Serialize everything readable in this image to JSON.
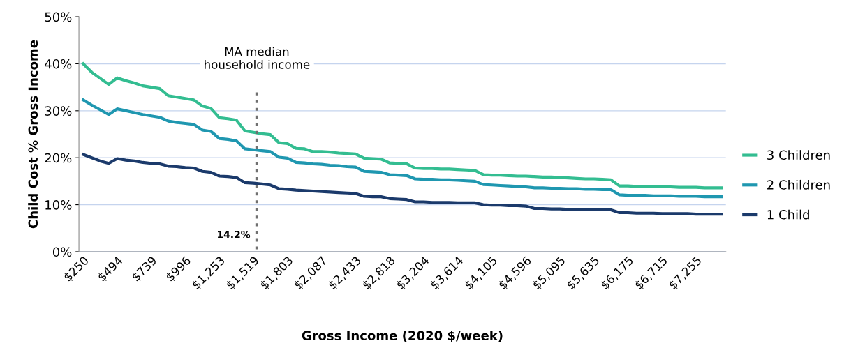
{
  "chart_data": {
    "type": "line",
    "xlabel": "Gross Income (2020 $/week)",
    "ylabel": "Child Cost % Gross Income",
    "categories": [
      "$250",
      null,
      null,
      null,
      "$494",
      null,
      null,
      null,
      "$739",
      null,
      null,
      null,
      "$996",
      null,
      null,
      null,
      "$1,253",
      null,
      null,
      null,
      "$1,519",
      null,
      null,
      null,
      "$1,803",
      null,
      null,
      null,
      "$2,087",
      null,
      null,
      null,
      "$2,433",
      null,
      null,
      null,
      "$2,818",
      null,
      null,
      null,
      "$3,204",
      null,
      null,
      null,
      "$3,614",
      null,
      null,
      null,
      "$4,105",
      null,
      null,
      null,
      "$4,596",
      null,
      null,
      null,
      "$5,095",
      null,
      null,
      null,
      "$5,635",
      null,
      null,
      null,
      "$6,175",
      null,
      null,
      null,
      "$6,715",
      null,
      null,
      null,
      "$7,255",
      null,
      null,
      null
    ],
    "series": [
      {
        "name": "3 Children",
        "color": "#33bd91",
        "values": [
          40.0,
          38.2,
          36.9,
          35.6,
          37.0,
          36.4,
          35.9,
          35.3,
          35.0,
          34.7,
          33.2,
          32.9,
          32.6,
          32.3,
          31.0,
          30.5,
          28.5,
          28.3,
          28.0,
          25.7,
          25.4,
          25.1,
          24.9,
          23.2,
          23.0,
          22.0,
          21.9,
          21.3,
          21.3,
          21.2,
          21.0,
          20.9,
          20.8,
          19.9,
          19.8,
          19.7,
          18.9,
          18.8,
          18.7,
          17.8,
          17.7,
          17.7,
          17.6,
          17.6,
          17.5,
          17.4,
          17.3,
          16.4,
          16.3,
          16.3,
          16.2,
          16.1,
          16.1,
          16.0,
          15.9,
          15.9,
          15.8,
          15.7,
          15.6,
          15.5,
          15.5,
          15.4,
          15.3,
          14.0,
          14.0,
          13.9,
          13.9,
          13.8,
          13.8,
          13.8,
          13.7,
          13.7,
          13.7,
          13.6,
          13.6,
          13.6
        ]
      },
      {
        "name": "2 Children",
        "color": "#1f97b0",
        "values": [
          32.3,
          31.2,
          30.2,
          29.2,
          30.4,
          30.0,
          29.6,
          29.2,
          28.9,
          28.6,
          27.8,
          27.5,
          27.3,
          27.1,
          25.9,
          25.6,
          24.1,
          23.9,
          23.6,
          21.9,
          21.7,
          21.5,
          21.3,
          20.1,
          19.9,
          19.0,
          18.9,
          18.7,
          18.6,
          18.4,
          18.3,
          18.1,
          18.0,
          17.1,
          17.0,
          16.9,
          16.4,
          16.3,
          16.2,
          15.5,
          15.4,
          15.4,
          15.3,
          15.3,
          15.2,
          15.1,
          15.0,
          14.3,
          14.2,
          14.1,
          14.0,
          13.9,
          13.8,
          13.6,
          13.6,
          13.5,
          13.5,
          13.4,
          13.4,
          13.3,
          13.3,
          13.2,
          13.2,
          12.1,
          12.0,
          12.0,
          12.0,
          11.9,
          11.9,
          11.9,
          11.8,
          11.8,
          11.8,
          11.7,
          11.7,
          11.7
        ]
      },
      {
        "name": "1 Child",
        "color": "#1b3a6b",
        "values": [
          20.7,
          20.0,
          19.3,
          18.8,
          19.8,
          19.5,
          19.3,
          19.0,
          18.8,
          18.7,
          18.2,
          18.1,
          17.9,
          17.8,
          17.1,
          16.9,
          16.1,
          16.0,
          15.8,
          14.7,
          14.6,
          14.4,
          14.2,
          13.4,
          13.3,
          13.1,
          13.0,
          12.9,
          12.8,
          12.7,
          12.6,
          12.5,
          12.4,
          11.8,
          11.7,
          11.7,
          11.3,
          11.2,
          11.1,
          10.6,
          10.6,
          10.5,
          10.5,
          10.5,
          10.4,
          10.4,
          10.4,
          10.0,
          9.9,
          9.9,
          9.8,
          9.8,
          9.7,
          9.2,
          9.2,
          9.1,
          9.1,
          9.0,
          9.0,
          9.0,
          8.9,
          8.9,
          8.9,
          8.3,
          8.3,
          8.2,
          8.2,
          8.2,
          8.1,
          8.1,
          8.1,
          8.1,
          8.0,
          8.0,
          8.0,
          8.0
        ]
      }
    ],
    "ylim": [
      0,
      50
    ],
    "yticks": [
      {
        "value": 0,
        "label": "0%"
      },
      {
        "value": 10,
        "label": "10%"
      },
      {
        "value": 20,
        "label": "20%"
      },
      {
        "value": 30,
        "label": "30%"
      },
      {
        "value": 40,
        "label": "40%"
      },
      {
        "value": 50,
        "label": "50%"
      }
    ],
    "annotations": [
      "MA median\nhousehold income",
      "14.2%"
    ],
    "grid": "y",
    "legend": "right",
    "marker": "none",
    "line_style": "solid"
  }
}
